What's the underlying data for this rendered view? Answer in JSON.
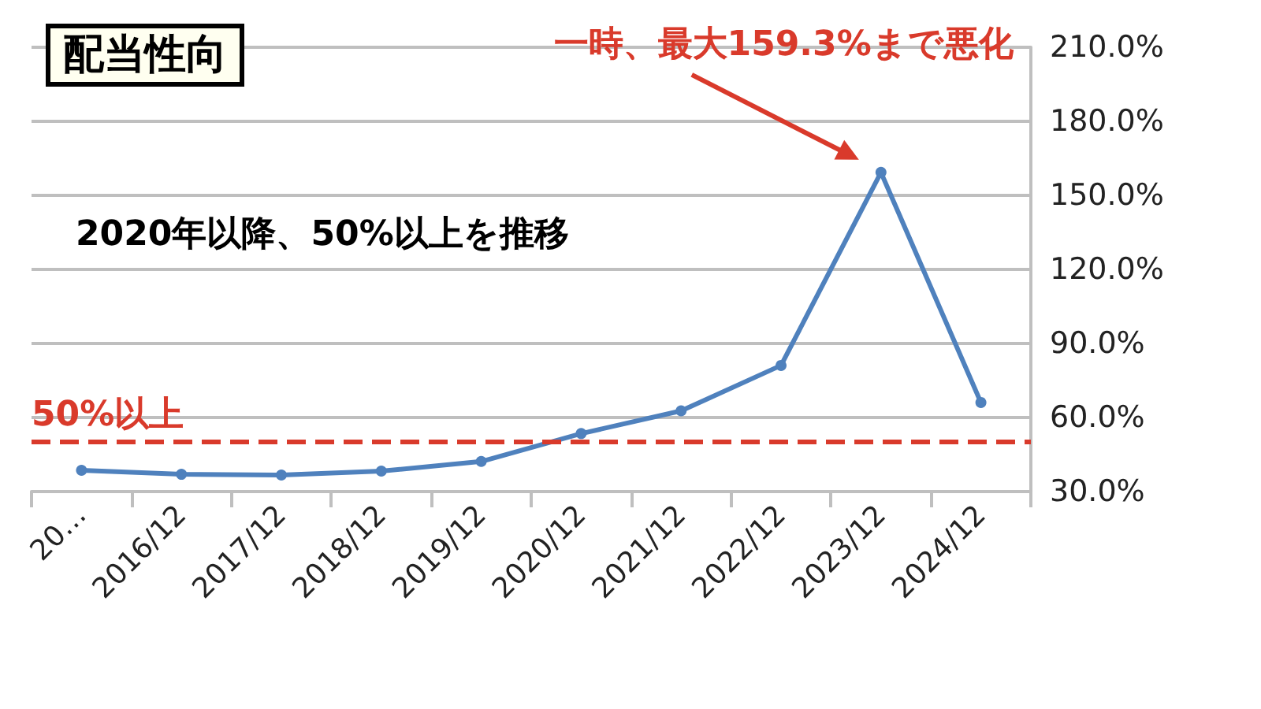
{
  "chart_data": {
    "type": "line",
    "title": "配当性向",
    "categories": [
      "20…",
      "2016/12",
      "2017/12",
      "2018/12",
      "2019/12",
      "2020/12",
      "2021/12",
      "2022/12",
      "2023/12",
      "2024/12"
    ],
    "series": [
      {
        "color": "#4f81bd",
        "values": [
          38.6,
          37.0,
          36.7,
          38.3,
          42.2,
          53.5,
          62.7,
          81.1,
          159.3,
          66.1
        ]
      }
    ],
    "ylim": [
      30,
      210
    ],
    "yticks": [
      {
        "value": 30,
        "label": "30.0%"
      },
      {
        "value": 60,
        "label": "60.0%"
      },
      {
        "value": 90,
        "label": "90.0%"
      },
      {
        "value": 120,
        "label": "120.0%"
      },
      {
        "value": 150,
        "label": "150.0%"
      },
      {
        "value": 180,
        "label": "180.0%"
      },
      {
        "value": 210,
        "label": "210.0%"
      }
    ],
    "ref_lines": [
      {
        "axis": "y",
        "value": 50,
        "label": "50%以上",
        "color": "#d93a2b",
        "line_style": "dashed"
      }
    ],
    "annotations": [
      "一時、最大159.3%まで悪化",
      "2020年以降、50%以上を推移"
    ],
    "grid": "y",
    "marker": "circle",
    "line_style": "solid"
  }
}
